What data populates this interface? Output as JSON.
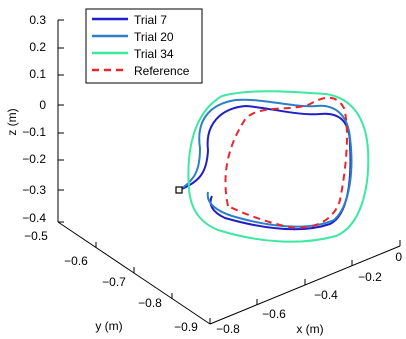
{
  "chart_data": {
    "type": "line",
    "plot_kind": "3d-line",
    "xlabel": "x (m)",
    "ylabel": "y (m)",
    "zlabel": "z (m)",
    "xlim": [
      -0.8,
      0
    ],
    "ylim": [
      -0.9,
      -0.5
    ],
    "zlim": [
      -0.4,
      0.3
    ],
    "x_ticks": [
      "0",
      "−0.2",
      "−0.4",
      "−0.6",
      "−0.8"
    ],
    "y_ticks": [
      "−0.5",
      "−0.6",
      "−0.7",
      "−0.8",
      "−0.9"
    ],
    "z_ticks": [
      "0.3",
      "0.2",
      "0.1",
      "0",
      "−0.1",
      "−0.2",
      "−0.3",
      "−0.4"
    ],
    "grid": false,
    "legend_position": "top-left",
    "start_marker": {
      "shape": "square",
      "color": "#000000"
    },
    "series": [
      {
        "name": "Trial 7",
        "color": "#1f1fc8",
        "dash": "solid"
      },
      {
        "name": "Trial 20",
        "color": "#2a7fc8",
        "dash": "solid"
      },
      {
        "name": "Trial 34",
        "color": "#3ee8a0",
        "dash": "solid"
      },
      {
        "name": "Reference",
        "color": "#e8262c",
        "dash": "dashed"
      }
    ]
  }
}
